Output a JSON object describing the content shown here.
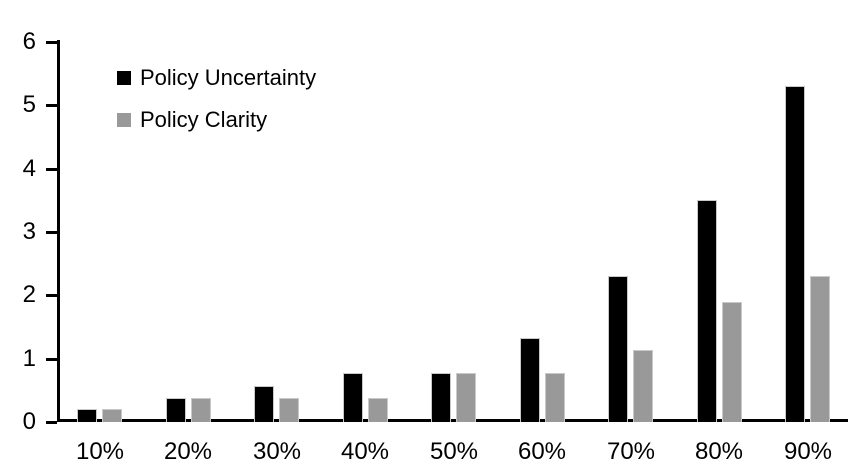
{
  "chart_data": {
    "type": "bar",
    "title": "",
    "categories": [
      "10%",
      "20%",
      "30%",
      "40%",
      "50%",
      "60%",
      "70%",
      "80%",
      "90%"
    ],
    "series": [
      {
        "name": "Policy Uncertainty",
        "color": "#000000",
        "values": [
          0.2,
          0.38,
          0.57,
          0.77,
          0.78,
          1.33,
          2.3,
          3.5,
          5.3
        ]
      },
      {
        "name": "Policy Clarity",
        "color": "#999999",
        "values": [
          0.2,
          0.38,
          0.38,
          0.38,
          0.77,
          0.77,
          1.13,
          1.9,
          2.3
        ]
      }
    ],
    "xlabel": "",
    "ylabel": "",
    "ylim": [
      0,
      6
    ],
    "y_ticks": [
      0,
      1,
      2,
      3,
      4,
      5,
      6
    ],
    "grid": false,
    "legend_position": "top-left",
    "axis_color": "#000000",
    "bar_border_color": "#c9c9c9",
    "background_color": "#ffffff"
  }
}
